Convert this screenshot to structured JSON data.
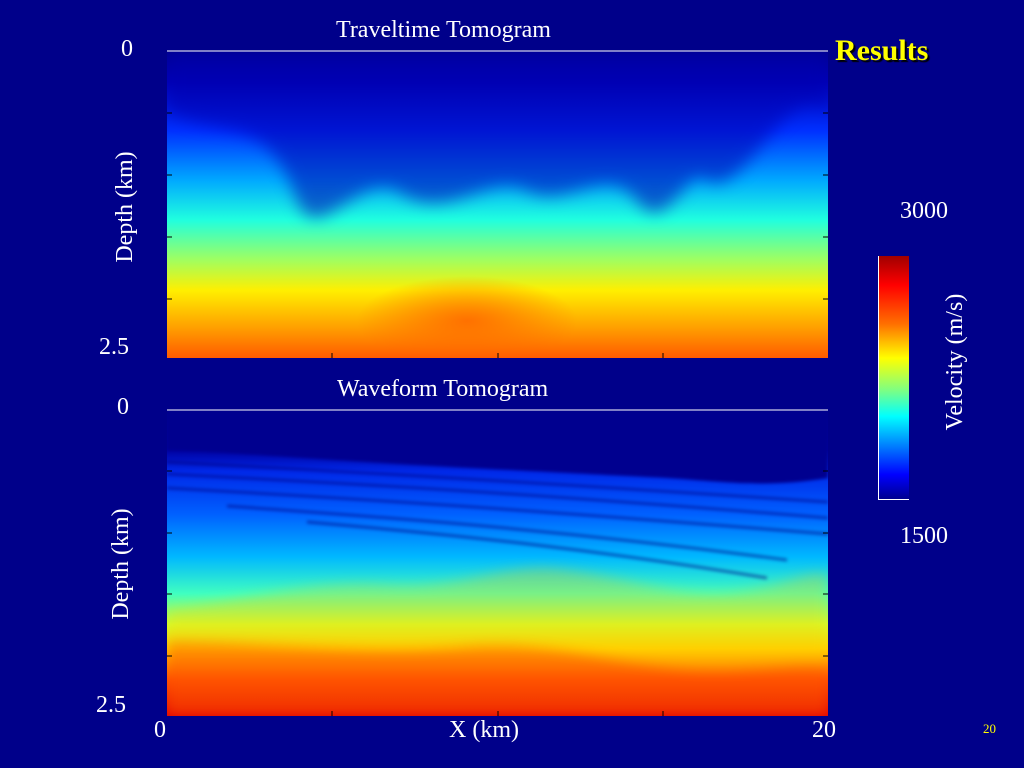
{
  "slide": {
    "title": "Results",
    "page_number": "20"
  },
  "chart_data": [
    {
      "type": "heatmap",
      "title": "Traveltime Tomogram",
      "ylabel": "Depth (km)",
      "xlabel": "",
      "ylim": [
        0,
        2.5
      ],
      "xlim": [
        0,
        20
      ],
      "y_tick_labels": [
        "0",
        "2.5"
      ],
      "x_tick_labels": [],
      "colorbar": "Velocity (m/s)"
    },
    {
      "type": "heatmap",
      "title": "Waveform Tomogram",
      "ylabel": "Depth (km)",
      "xlabel": "X (km)",
      "ylim": [
        0,
        2.5
      ],
      "xlim": [
        0,
        20
      ],
      "y_tick_labels": [
        "0",
        "2.5"
      ],
      "x_tick_labels": [
        "0",
        "20"
      ],
      "colorbar": "Velocity (m/s)"
    }
  ],
  "colorbar": {
    "label": "Velocity (m/s)",
    "max_label": "3000",
    "min_label": "1500",
    "range": [
      1500,
      3000
    ],
    "colormap": "jet"
  },
  "colors": {
    "background": "#00008a",
    "title": "#ffff00",
    "text": "#ffffff"
  }
}
